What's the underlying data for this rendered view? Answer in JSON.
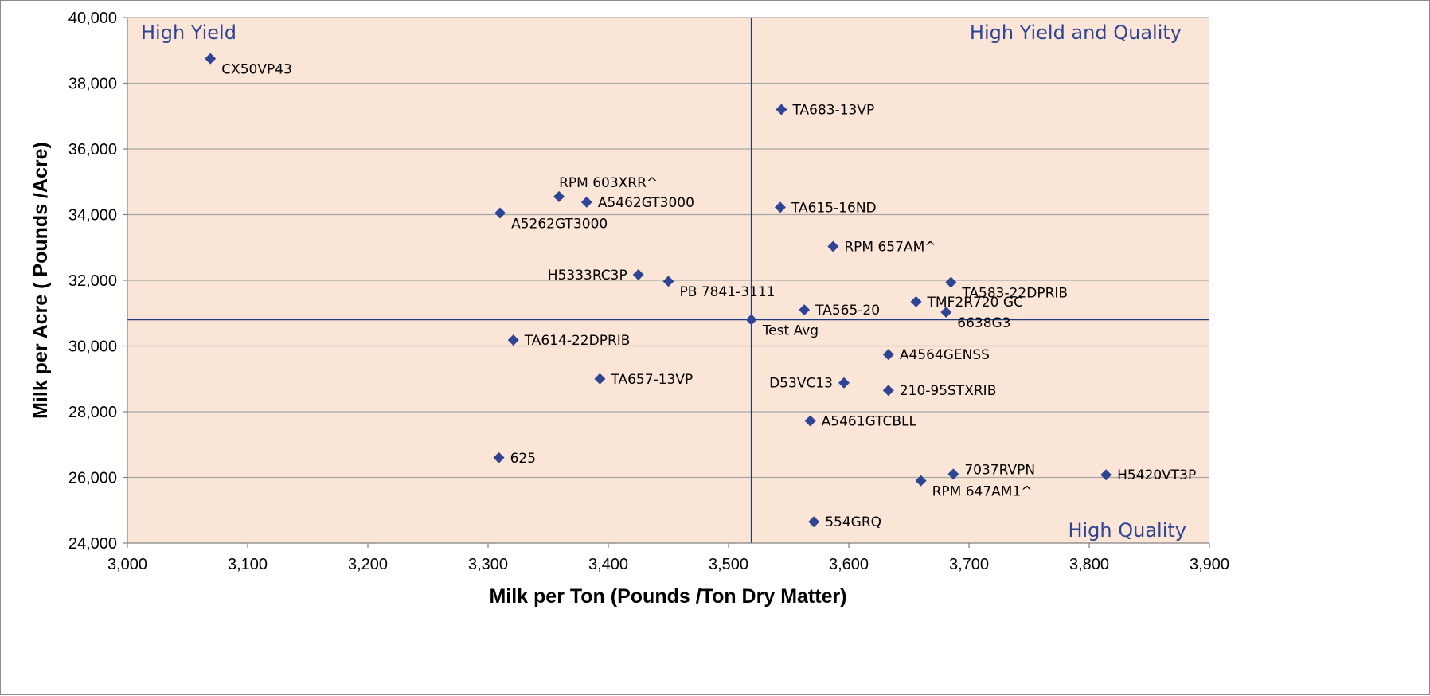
{
  "chart_data": {
    "type": "scatter",
    "xlabel": "Milk per Ton (Pounds /Ton Dry Matter)",
    "ylabel": "Milk per Acre ( Pounds /Acre)",
    "xlim": [
      3000,
      3900
    ],
    "ylim": [
      24000,
      40000
    ],
    "x_ticks": [
      3000,
      3100,
      3200,
      3300,
      3400,
      3500,
      3600,
      3700,
      3800,
      3900
    ],
    "y_ticks": [
      24000,
      26000,
      28000,
      30000,
      32000,
      34000,
      36000,
      38000,
      40000
    ],
    "x_tick_labels": [
      "3,000",
      "3,100",
      "3,200",
      "3,300",
      "3,400",
      "3,500",
      "3,600",
      "3,700",
      "3,800",
      "3,900"
    ],
    "y_tick_labels": [
      "24,000",
      "26,000",
      "28,000",
      "30,000",
      "32,000",
      "34,000",
      "36,000",
      "38,000",
      "40,000"
    ],
    "grid": "horizontal",
    "reference_lines": {
      "x": 3519,
      "y": 30800
    },
    "quadrant_labels": {
      "top_left": "High Yield",
      "top_right": "High Yield and Quality",
      "bottom_right": "High Quality"
    },
    "colors": {
      "plot_background": "#fbe5d6",
      "marker": "#2e4596",
      "reference_line": "#1f3a80",
      "quadrant_text": "#2e4596",
      "gridline": "#a6a6a6"
    },
    "marker": "diamond",
    "points": [
      {
        "label": "CX50VP43",
        "x": 3069,
        "y": 38750,
        "label_pos": "below-right"
      },
      {
        "label": "TA683-13VP",
        "x": 3544,
        "y": 37200,
        "label_pos": "right"
      },
      {
        "label": "RPM 603XRR^",
        "x": 3359,
        "y": 34550,
        "label_pos": "above"
      },
      {
        "label": "A5462GT3000",
        "x": 3382,
        "y": 34380,
        "label_pos": "right"
      },
      {
        "label": "A5262GT3000",
        "x": 3310,
        "y": 34050,
        "label_pos": "below-right"
      },
      {
        "label": "TA615-16ND",
        "x": 3543,
        "y": 34220,
        "label_pos": "right"
      },
      {
        "label": "RPM 657AM^",
        "x": 3587,
        "y": 33030,
        "label_pos": "right"
      },
      {
        "label": "H5333RC3P",
        "x": 3425,
        "y": 32170,
        "label_pos": "left"
      },
      {
        "label": "PB 7841-3111",
        "x": 3450,
        "y": 31970,
        "label_pos": "below-right"
      },
      {
        "label": "TA583-22DPRIB",
        "x": 3685,
        "y": 31940,
        "label_pos": "below-right"
      },
      {
        "label": "TMF2R720 GC",
        "x": 3656,
        "y": 31350,
        "label_pos": "right"
      },
      {
        "label": "6638G3",
        "x": 3681,
        "y": 31030,
        "label_pos": "below-right"
      },
      {
        "label": "TA565-20",
        "x": 3563,
        "y": 31100,
        "label_pos": "right"
      },
      {
        "label": "Test Avg",
        "x": 3519,
        "y": 30800,
        "label_pos": "below-right"
      },
      {
        "label": "TA614-22DPRIB",
        "x": 3321,
        "y": 30180,
        "label_pos": "right"
      },
      {
        "label": "A4564GENSS",
        "x": 3633,
        "y": 29740,
        "label_pos": "right"
      },
      {
        "label": "TA657-13VP",
        "x": 3393,
        "y": 29000,
        "label_pos": "right"
      },
      {
        "label": "D53VC13",
        "x": 3596,
        "y": 28880,
        "label_pos": "left"
      },
      {
        "label": "210-95STXRIB",
        "x": 3633,
        "y": 28650,
        "label_pos": "right"
      },
      {
        "label": "A5461GTCBLL",
        "x": 3568,
        "y": 27720,
        "label_pos": "right"
      },
      {
        "label": "625",
        "x": 3309,
        "y": 26600,
        "label_pos": "right"
      },
      {
        "label": "7037RVPN",
        "x": 3687,
        "y": 26100,
        "label_pos": "above-right"
      },
      {
        "label": "H5420VT3P",
        "x": 3814,
        "y": 26080,
        "label_pos": "right"
      },
      {
        "label": "RPM 647AM1^",
        "x": 3660,
        "y": 25900,
        "label_pos": "below-right"
      },
      {
        "label": "554GRQ",
        "x": 3571,
        "y": 24650,
        "label_pos": "right"
      }
    ]
  }
}
